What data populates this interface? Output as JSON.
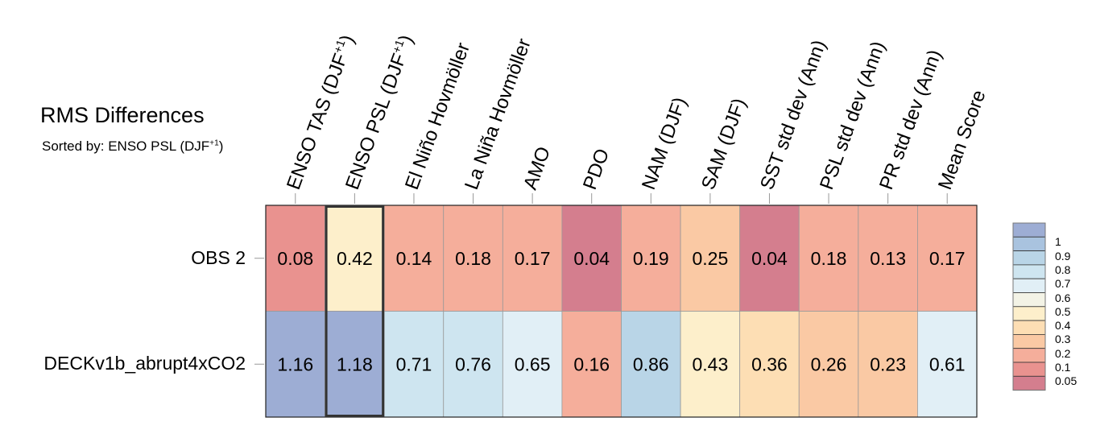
{
  "chart_data": {
    "type": "heatmap",
    "title": "RMS Differences",
    "subtitle": {
      "text": "Sorted by: ENSO PSL (DJF",
      "sup": "+1",
      "tail": ")"
    },
    "columns": [
      {
        "label": "ENSO TAS (DJF",
        "sup": "+1",
        "tail": ")"
      },
      {
        "label": "ENSO PSL (DJF",
        "sup": "+1",
        "tail": ")"
      },
      {
        "label": "El Niño Hovmöller"
      },
      {
        "label": "La Niña Hovmöller"
      },
      {
        "label": "AMO"
      },
      {
        "label": "PDO"
      },
      {
        "label": "NAM (DJF)"
      },
      {
        "label": "SAM (DJF)"
      },
      {
        "label": "SST std dev (Ann)"
      },
      {
        "label": "PSL std dev (Ann)"
      },
      {
        "label": "PR std dev (Ann)"
      },
      {
        "label": "Mean Score"
      }
    ],
    "rows": [
      "OBS 2",
      "DECKv1b_abrupt4xCO2"
    ],
    "values": [
      [
        0.08,
        0.42,
        0.14,
        0.18,
        0.17,
        0.04,
        0.19,
        0.25,
        0.04,
        0.18,
        0.13,
        0.17
      ],
      [
        1.16,
        1.18,
        0.71,
        0.76,
        0.65,
        0.16,
        0.86,
        0.43,
        0.36,
        0.26,
        0.23,
        0.61
      ]
    ],
    "highlight_column": 1,
    "legend": {
      "labels": [
        "1",
        "0.9",
        "0.8",
        "0.7",
        "0.6",
        "0.5",
        "0.4",
        "0.3",
        "0.2",
        "0.1",
        "0.05"
      ],
      "thresholds": [
        1,
        0.9,
        0.8,
        0.7,
        0.6,
        0.5,
        0.4,
        0.3,
        0.2,
        0.1,
        0.05
      ],
      "colors": [
        "#9dadd4",
        "#a9c3df",
        "#b9d5e7",
        "#cee5f0",
        "#e1eff6",
        "#f3f3e6",
        "#fdefcb",
        "#fddeb4",
        "#fac9a4",
        "#f5ae9b",
        "#e9928f",
        "#d47e8e"
      ],
      "placement": "right"
    }
  }
}
